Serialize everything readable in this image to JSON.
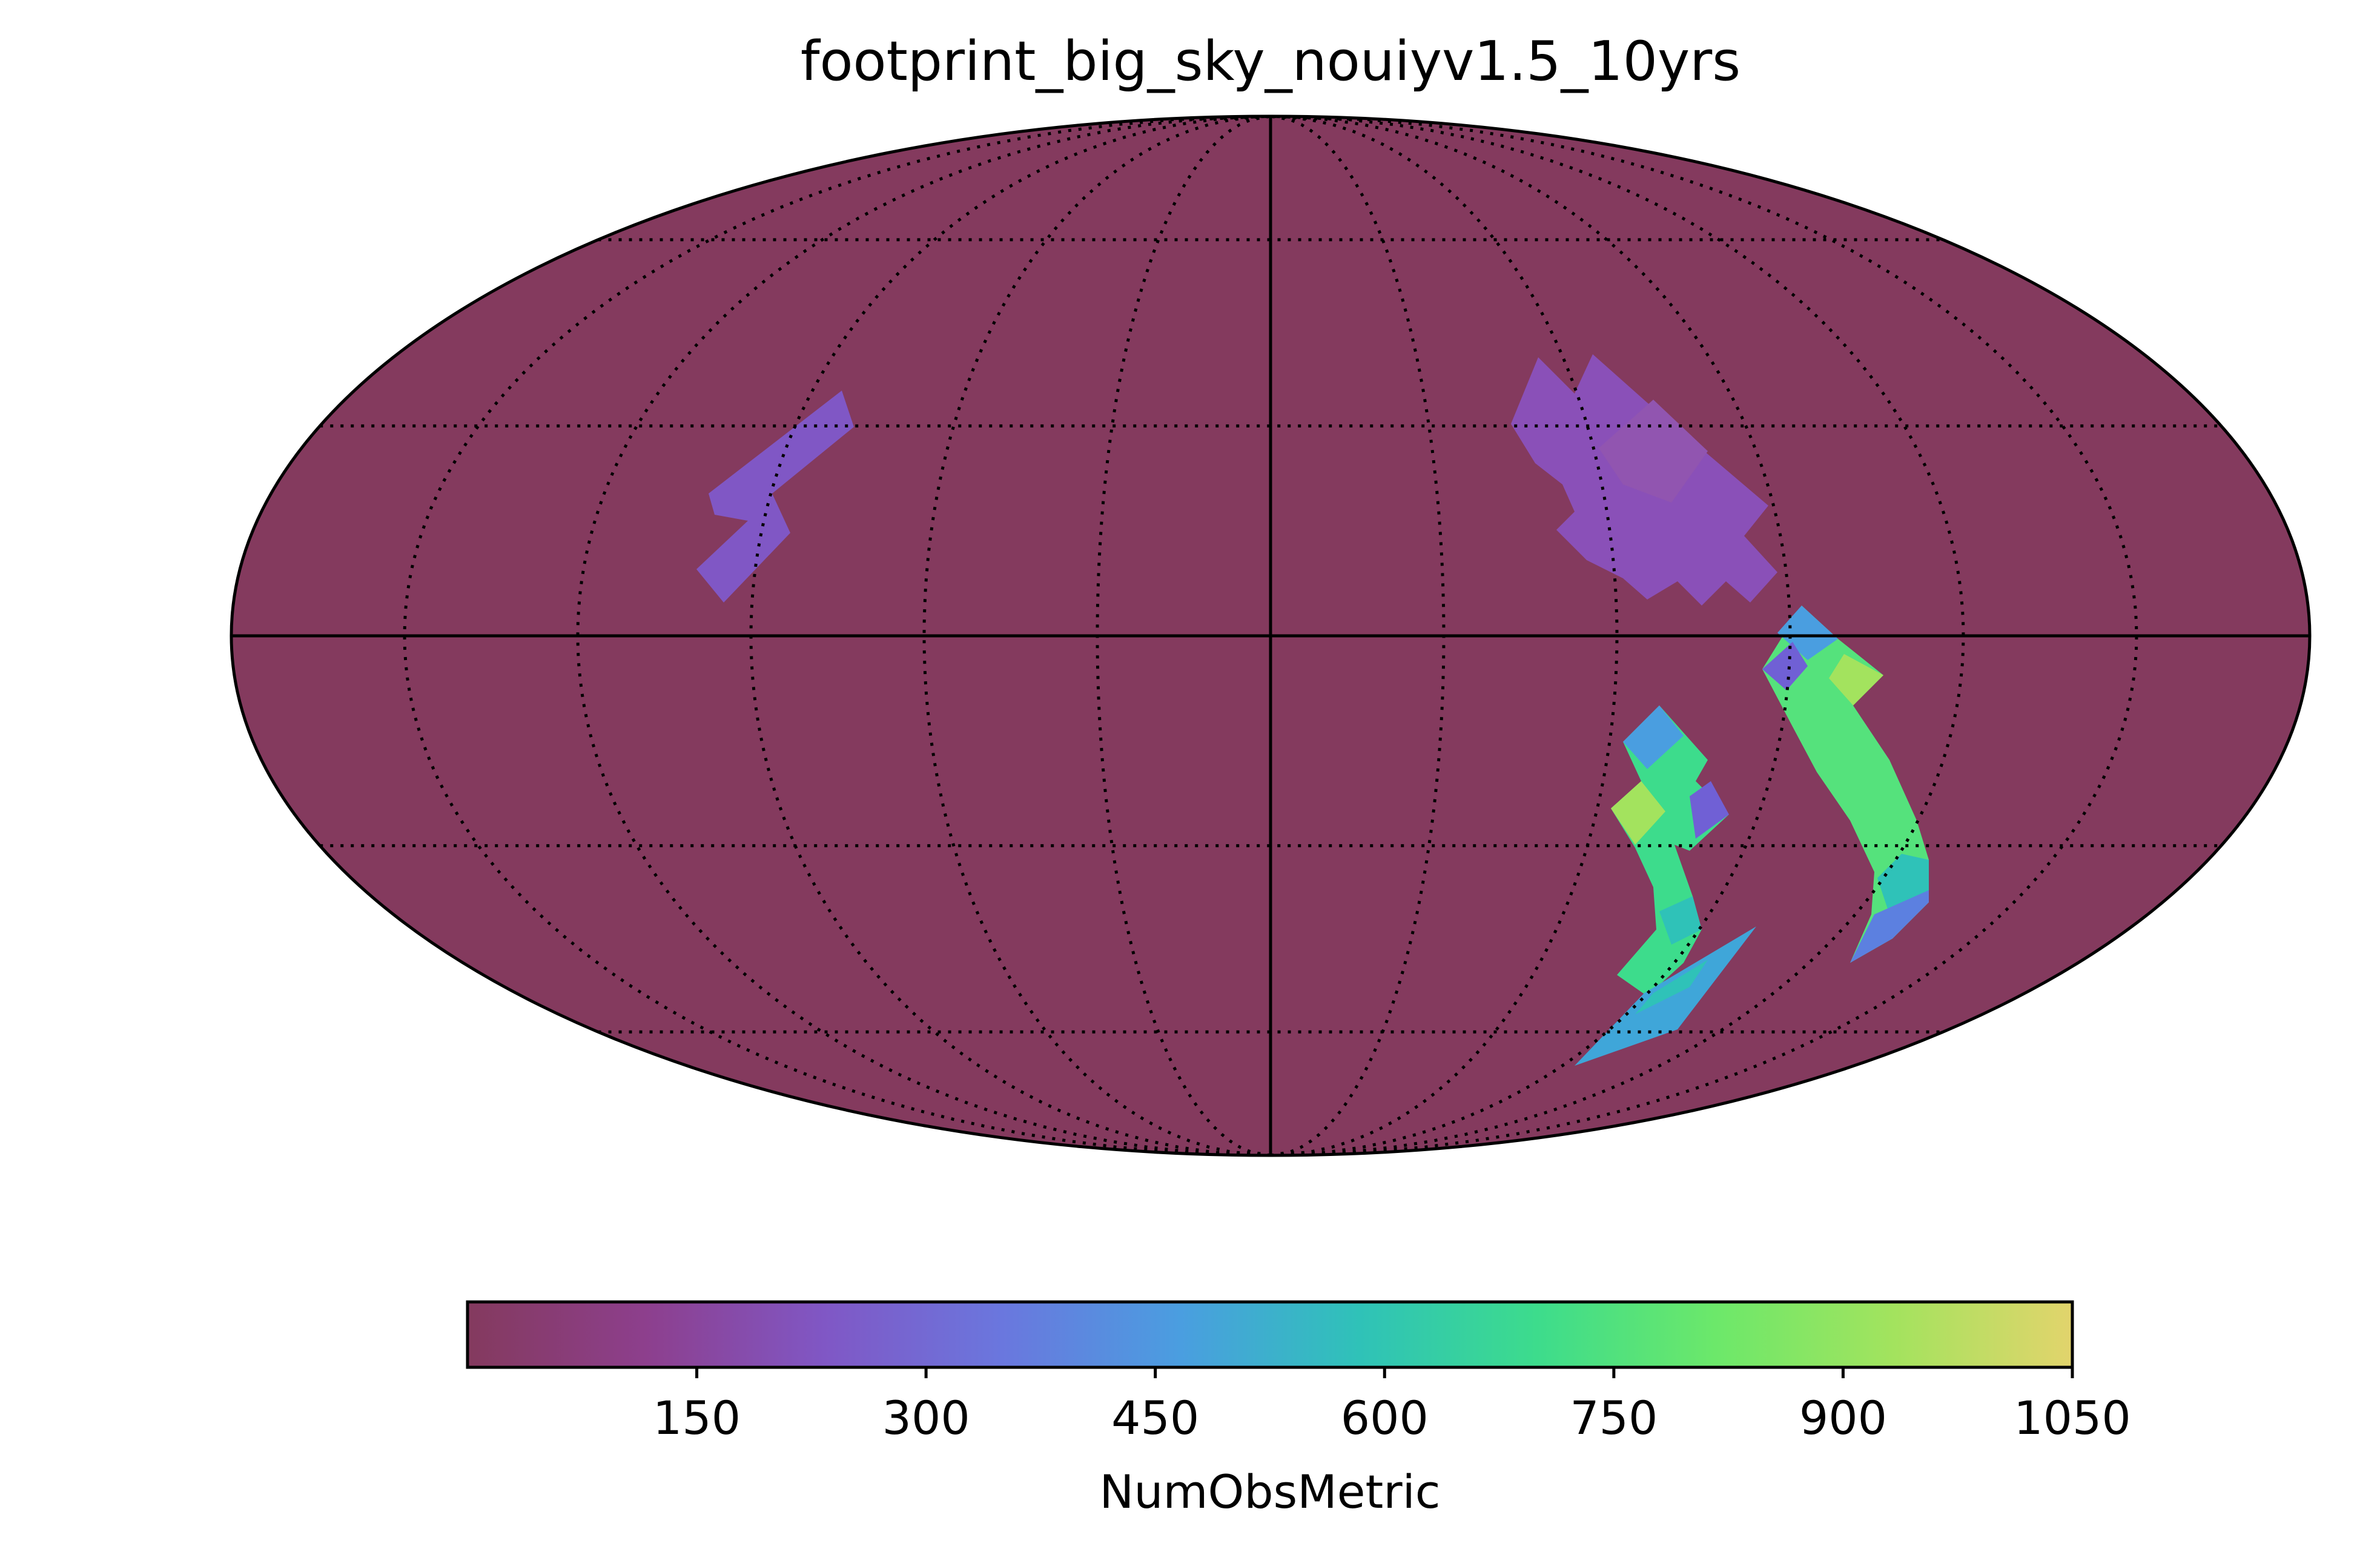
{
  "chart_data": {
    "type": "heatmap",
    "projection": "mollweide",
    "title": "footprint_big_sky_nouiyv1.5_10yrs",
    "colorbar": {
      "label": "NumObsMetric",
      "min": 0,
      "max": 1050,
      "ticks": [
        150,
        300,
        450,
        600,
        750,
        900,
        1050
      ],
      "tick_labels": [
        "150",
        "300",
        "450",
        "600",
        "750",
        "900",
        "1050"
      ],
      "colormap_stops": [
        "#843a5e",
        "#8d3f8d",
        "#8057c5",
        "#6a77de",
        "#4a9ee0",
        "#2fc2b8",
        "#3ddc8c",
        "#6ce86a",
        "#a3e35e",
        "#e2d46c"
      ]
    },
    "background_value": 0,
    "background_color": "#843a5e",
    "graticule": {
      "meridians_deg": [
        -150,
        -120,
        -90,
        -60,
        -30,
        0,
        30,
        60,
        90,
        120,
        150
      ],
      "parallels_deg": [
        -60,
        -30,
        0,
        30,
        60
      ]
    },
    "regions": [
      {
        "name": "northwest-patch",
        "approx_value": 220,
        "color": "#8057c5"
      },
      {
        "name": "northeast-patch",
        "approx_value": 230,
        "color": "#8a50b8"
      },
      {
        "name": "southeast-inner-arc",
        "approx_value": 700,
        "color": "#3ddc8c"
      },
      {
        "name": "southeast-outer-arc",
        "approx_value": 760,
        "color": "#55e27c"
      },
      {
        "name": "southeast-tail-strip",
        "approx_value": 480,
        "color": "#3fa6d9"
      }
    ]
  }
}
